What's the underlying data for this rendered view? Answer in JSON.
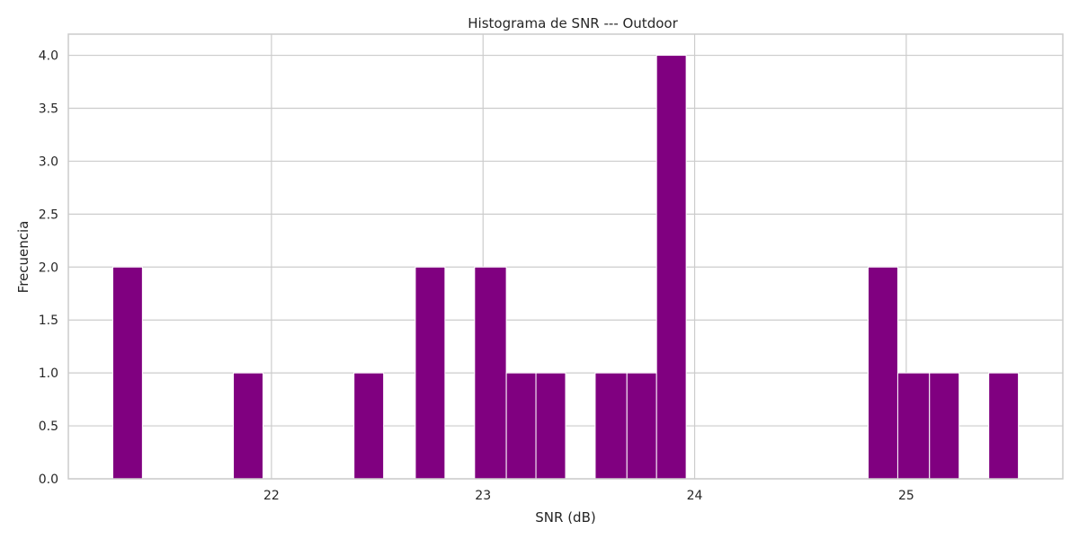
{
  "chart_data": {
    "type": "bar",
    "title": "Histograma de SNR  --- Outdoor",
    "xlabel": "SNR (dB)",
    "ylabel": "Frecuencia",
    "bar_color": "#800080",
    "grid": true,
    "xlim": [
      21.04,
      25.74
    ],
    "ylim": [
      0,
      4.2
    ],
    "x_ticks": [
      22,
      23,
      24,
      25
    ],
    "x_tick_labels": [
      "22",
      "23",
      "24",
      "25"
    ],
    "y_ticks": [
      0,
      0.5,
      1.0,
      1.5,
      2.0,
      2.5,
      3.0,
      3.5,
      4.0
    ],
    "y_tick_labels": [
      "0.0",
      "0.5",
      "1.0",
      "1.5",
      "2.0",
      "2.5",
      "3.0",
      "3.5",
      "4.0"
    ],
    "bins": [
      {
        "x0": 21.25,
        "x1": 21.39,
        "count": 2
      },
      {
        "x0": 21.82,
        "x1": 21.96,
        "count": 1
      },
      {
        "x0": 22.39,
        "x1": 22.53,
        "count": 1
      },
      {
        "x0": 22.68,
        "x1": 22.82,
        "count": 2
      },
      {
        "x0": 22.96,
        "x1": 23.11,
        "count": 2
      },
      {
        "x0": 23.11,
        "x1": 23.25,
        "count": 1
      },
      {
        "x0": 23.25,
        "x1": 23.39,
        "count": 1
      },
      {
        "x0": 23.53,
        "x1": 23.68,
        "count": 1
      },
      {
        "x0": 23.68,
        "x1": 23.82,
        "count": 1
      },
      {
        "x0": 23.82,
        "x1": 23.96,
        "count": 4
      },
      {
        "x0": 24.82,
        "x1": 24.96,
        "count": 2
      },
      {
        "x0": 24.96,
        "x1": 25.11,
        "count": 1
      },
      {
        "x0": 25.11,
        "x1": 25.25,
        "count": 1
      },
      {
        "x0": 25.39,
        "x1": 25.53,
        "count": 1
      }
    ]
  }
}
